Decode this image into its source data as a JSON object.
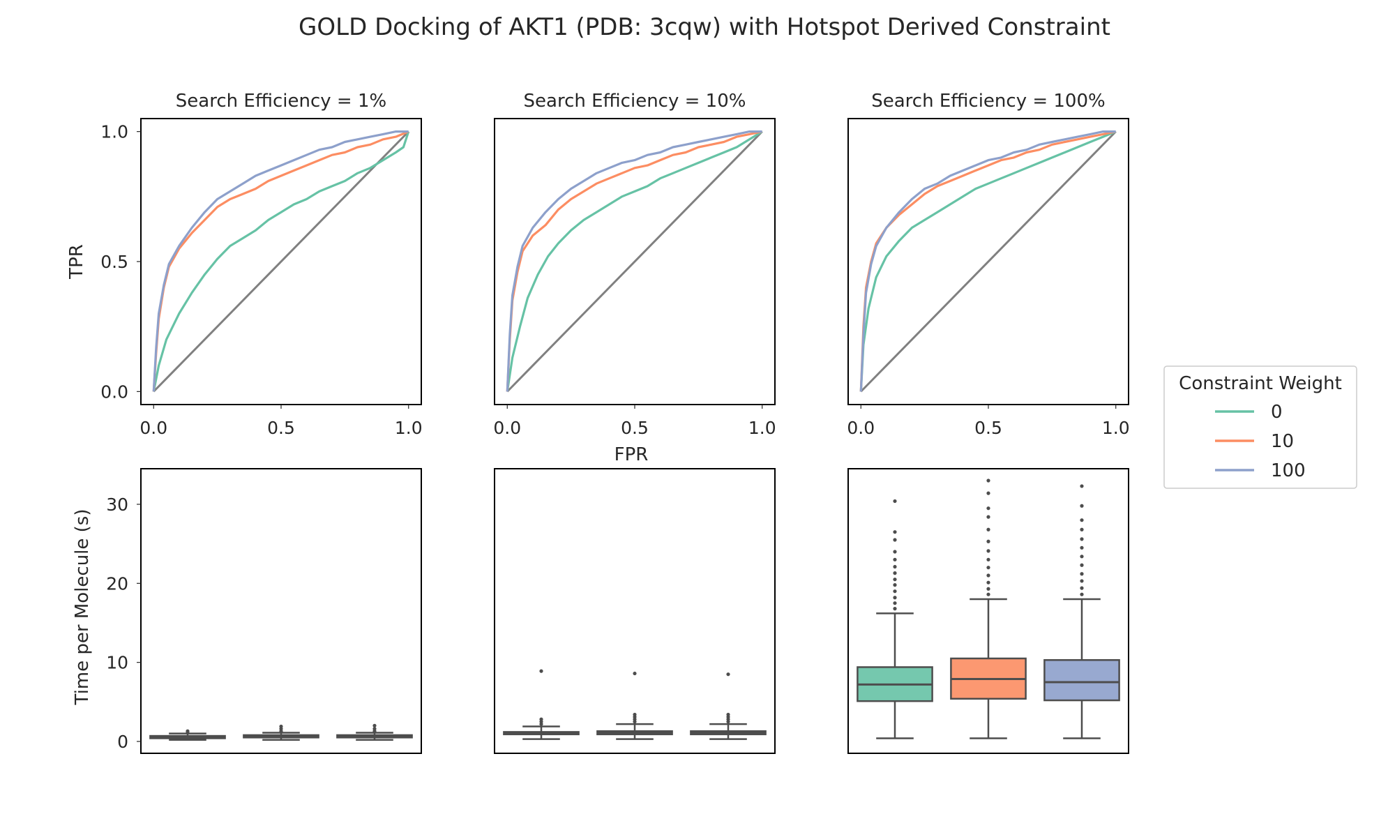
{
  "chart_data": {
    "title": "GOLD Docking of AKT1 (PDB: 3cqw) with Hotspot Derived Constraint",
    "colors": {
      "0": "#66c2a5",
      "10": "#fc8d62",
      "100": "#8da0cb",
      "diagonal": "#808080",
      "box_line": "#4d4d4d"
    },
    "legend": {
      "title": "Constraint Weight",
      "placement": "right-center",
      "entries": [
        "0",
        "10",
        "100"
      ]
    },
    "roc": {
      "type": "line",
      "xlabel": "FPR",
      "ylabel": "TPR",
      "xlim": [
        -0.05,
        1.05
      ],
      "ylim": [
        -0.05,
        1.05
      ],
      "xticks": [
        "0.0",
        "0.5",
        "1.0"
      ],
      "yticks": [
        "0.0",
        "0.5",
        "1.0"
      ],
      "panels": [
        {
          "title": "Search Efficiency = 1%",
          "series": [
            {
              "name": "0",
              "x": [
                0,
                0.02,
                0.05,
                0.1,
                0.15,
                0.2,
                0.25,
                0.3,
                0.35,
                0.4,
                0.45,
                0.5,
                0.55,
                0.6,
                0.65,
                0.7,
                0.75,
                0.8,
                0.85,
                0.9,
                0.95,
                0.98,
                1.0
              ],
              "y": [
                0,
                0.1,
                0.2,
                0.3,
                0.38,
                0.45,
                0.51,
                0.56,
                0.59,
                0.62,
                0.66,
                0.69,
                0.72,
                0.74,
                0.77,
                0.79,
                0.81,
                0.84,
                0.86,
                0.89,
                0.92,
                0.94,
                1.0
              ]
            },
            {
              "name": "10",
              "x": [
                0,
                0.01,
                0.02,
                0.04,
                0.06,
                0.1,
                0.15,
                0.2,
                0.25,
                0.3,
                0.35,
                0.4,
                0.45,
                0.5,
                0.55,
                0.6,
                0.65,
                0.7,
                0.75,
                0.8,
                0.85,
                0.9,
                0.95,
                1.0
              ],
              "y": [
                0,
                0.15,
                0.28,
                0.4,
                0.48,
                0.55,
                0.61,
                0.66,
                0.71,
                0.74,
                0.76,
                0.78,
                0.81,
                0.83,
                0.85,
                0.87,
                0.89,
                0.91,
                0.92,
                0.94,
                0.95,
                0.97,
                0.98,
                1.0
              ]
            },
            {
              "name": "100",
              "x": [
                0,
                0.01,
                0.02,
                0.04,
                0.06,
                0.1,
                0.15,
                0.2,
                0.25,
                0.3,
                0.35,
                0.4,
                0.45,
                0.5,
                0.55,
                0.6,
                0.65,
                0.7,
                0.75,
                0.8,
                0.85,
                0.9,
                0.95,
                1.0
              ],
              "y": [
                0,
                0.17,
                0.3,
                0.41,
                0.49,
                0.56,
                0.63,
                0.69,
                0.74,
                0.77,
                0.8,
                0.83,
                0.85,
                0.87,
                0.89,
                0.91,
                0.93,
                0.94,
                0.96,
                0.97,
                0.98,
                0.99,
                1.0,
                1.0
              ]
            }
          ]
        },
        {
          "title": "Search Efficiency = 10%",
          "series": [
            {
              "name": "0",
              "x": [
                0,
                0.02,
                0.05,
                0.08,
                0.12,
                0.16,
                0.2,
                0.25,
                0.3,
                0.35,
                0.4,
                0.45,
                0.5,
                0.55,
                0.6,
                0.65,
                0.7,
                0.75,
                0.8,
                0.85,
                0.9,
                0.95,
                1.0
              ],
              "y": [
                0,
                0.13,
                0.25,
                0.36,
                0.45,
                0.52,
                0.57,
                0.62,
                0.66,
                0.69,
                0.72,
                0.75,
                0.77,
                0.79,
                0.82,
                0.84,
                0.86,
                0.88,
                0.9,
                0.92,
                0.94,
                0.97,
                1.0
              ]
            },
            {
              "name": "10",
              "x": [
                0,
                0.01,
                0.02,
                0.04,
                0.06,
                0.1,
                0.15,
                0.2,
                0.25,
                0.3,
                0.35,
                0.4,
                0.45,
                0.5,
                0.55,
                0.6,
                0.65,
                0.7,
                0.75,
                0.8,
                0.85,
                0.9,
                0.95,
                1.0
              ],
              "y": [
                0,
                0.2,
                0.35,
                0.46,
                0.54,
                0.6,
                0.64,
                0.7,
                0.74,
                0.77,
                0.8,
                0.82,
                0.84,
                0.86,
                0.87,
                0.89,
                0.91,
                0.92,
                0.94,
                0.95,
                0.96,
                0.98,
                0.99,
                1.0
              ]
            },
            {
              "name": "100",
              "x": [
                0,
                0.01,
                0.02,
                0.04,
                0.06,
                0.1,
                0.15,
                0.2,
                0.25,
                0.3,
                0.35,
                0.4,
                0.45,
                0.5,
                0.55,
                0.6,
                0.65,
                0.7,
                0.75,
                0.8,
                0.85,
                0.9,
                0.95,
                1.0
              ],
              "y": [
                0,
                0.22,
                0.37,
                0.48,
                0.56,
                0.63,
                0.69,
                0.74,
                0.78,
                0.81,
                0.84,
                0.86,
                0.88,
                0.89,
                0.91,
                0.92,
                0.94,
                0.95,
                0.96,
                0.97,
                0.98,
                0.99,
                1.0,
                1.0
              ]
            }
          ]
        },
        {
          "title": "Search Efficiency = 100%",
          "series": [
            {
              "name": "0",
              "x": [
                0,
                0.01,
                0.03,
                0.06,
                0.1,
                0.15,
                0.2,
                0.25,
                0.3,
                0.35,
                0.4,
                0.45,
                0.5,
                0.55,
                0.6,
                0.65,
                0.7,
                0.75,
                0.8,
                0.85,
                0.9,
                0.95,
                1.0
              ],
              "y": [
                0,
                0.18,
                0.32,
                0.44,
                0.52,
                0.58,
                0.63,
                0.66,
                0.69,
                0.72,
                0.75,
                0.78,
                0.8,
                0.82,
                0.84,
                0.86,
                0.88,
                0.9,
                0.92,
                0.94,
                0.96,
                0.98,
                1.0
              ]
            },
            {
              "name": "10",
              "x": [
                0,
                0.01,
                0.02,
                0.04,
                0.06,
                0.1,
                0.15,
                0.2,
                0.25,
                0.3,
                0.35,
                0.4,
                0.45,
                0.5,
                0.55,
                0.6,
                0.65,
                0.7,
                0.75,
                0.8,
                0.85,
                0.9,
                0.95,
                1.0
              ],
              "y": [
                0,
                0.25,
                0.4,
                0.5,
                0.57,
                0.63,
                0.68,
                0.72,
                0.76,
                0.79,
                0.81,
                0.83,
                0.85,
                0.87,
                0.89,
                0.9,
                0.92,
                0.93,
                0.95,
                0.96,
                0.97,
                0.98,
                0.99,
                1.0
              ]
            },
            {
              "name": "100",
              "x": [
                0,
                0.01,
                0.02,
                0.04,
                0.06,
                0.1,
                0.15,
                0.2,
                0.25,
                0.3,
                0.35,
                0.4,
                0.45,
                0.5,
                0.55,
                0.6,
                0.65,
                0.7,
                0.75,
                0.8,
                0.85,
                0.9,
                0.95,
                1.0
              ],
              "y": [
                0,
                0.22,
                0.38,
                0.49,
                0.56,
                0.63,
                0.69,
                0.74,
                0.78,
                0.8,
                0.83,
                0.85,
                0.87,
                0.89,
                0.9,
                0.92,
                0.93,
                0.95,
                0.96,
                0.97,
                0.98,
                0.99,
                1.0,
                1.0
              ]
            }
          ]
        }
      ]
    },
    "timing": {
      "type": "box",
      "ylabel": "Time per Molecule (s)",
      "ylim": [
        -1.5,
        34.5
      ],
      "yticks": [
        0,
        10,
        20,
        30
      ],
      "categories": [
        "0",
        "10",
        "100"
      ],
      "panels": [
        {
          "boxes": [
            {
              "name": "0",
              "whisker_low": 0.2,
              "q1": 0.4,
              "median": 0.5,
              "q3": 0.7,
              "whisker_high": 1.0,
              "outliers": [
                1.1,
                1.3
              ]
            },
            {
              "name": "10",
              "whisker_low": 0.2,
              "q1": 0.5,
              "median": 0.6,
              "q3": 0.8,
              "whisker_high": 1.1,
              "outliers": [
                1.3,
                1.6,
                1.9
              ]
            },
            {
              "name": "100",
              "whisker_low": 0.2,
              "q1": 0.5,
              "median": 0.6,
              "q3": 0.8,
              "whisker_high": 1.1,
              "outliers": [
                1.3,
                1.6,
                2.0
              ]
            }
          ]
        },
        {
          "boxes": [
            {
              "name": "0",
              "whisker_low": 0.3,
              "q1": 0.9,
              "median": 1.0,
              "q3": 1.2,
              "whisker_high": 1.9,
              "outliers": [
                2.2,
                2.5,
                2.8,
                8.9
              ]
            },
            {
              "name": "10",
              "whisker_low": 0.3,
              "q1": 0.9,
              "median": 1.1,
              "q3": 1.3,
              "whisker_high": 2.2,
              "outliers": [
                2.5,
                2.8,
                3.1,
                3.4,
                8.6
              ]
            },
            {
              "name": "100",
              "whisker_low": 0.3,
              "q1": 0.9,
              "median": 1.1,
              "q3": 1.3,
              "whisker_high": 2.2,
              "outliers": [
                2.5,
                2.8,
                3.1,
                3.4,
                8.5
              ]
            }
          ]
        },
        {
          "boxes": [
            {
              "name": "0",
              "whisker_low": 0.4,
              "q1": 5.1,
              "median": 7.2,
              "q3": 9.4,
              "whisker_high": 16.2,
              "outliers": [
                16.8,
                17.5,
                18.2,
                19.0,
                19.8,
                20.5,
                21.3,
                22.1,
                23.0,
                24.0,
                25.5,
                26.5,
                30.4
              ]
            },
            {
              "name": "10",
              "whisker_low": 0.4,
              "q1": 5.4,
              "median": 7.9,
              "q3": 10.5,
              "whisker_high": 18.0,
              "outliers": [
                18.6,
                19.3,
                20.1,
                21.0,
                22.0,
                23.0,
                24.1,
                25.3,
                26.8,
                28.4,
                29.5,
                31.4,
                33.0
              ]
            },
            {
              "name": "100",
              "whisker_low": 0.4,
              "q1": 5.2,
              "median": 7.5,
              "q3": 10.3,
              "whisker_high": 18.0,
              "outliers": [
                18.6,
                19.4,
                20.3,
                21.2,
                22.3,
                23.4,
                24.5,
                25.6,
                26.8,
                28.0,
                29.8,
                32.3
              ]
            }
          ]
        }
      ]
    }
  }
}
